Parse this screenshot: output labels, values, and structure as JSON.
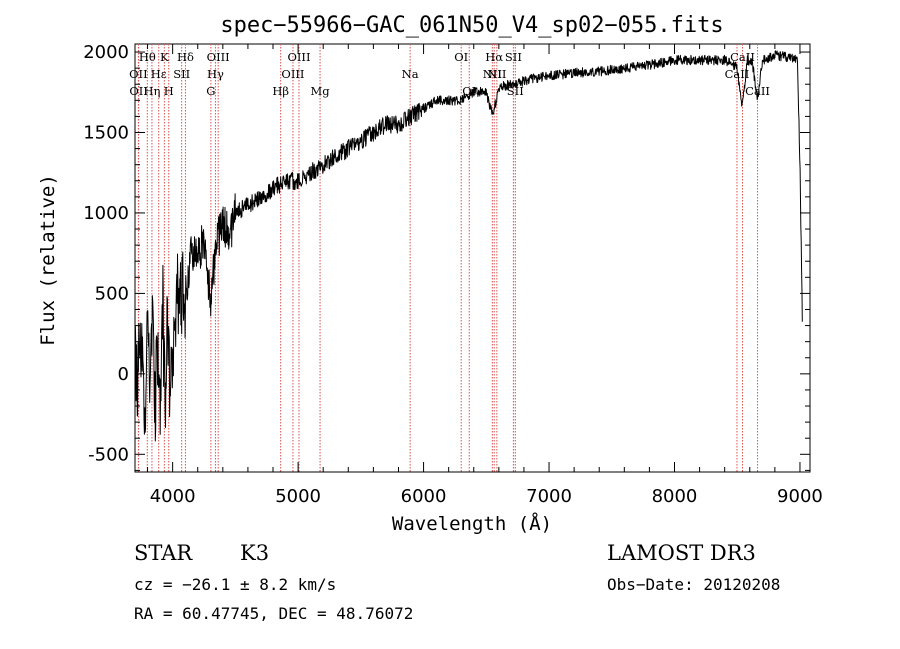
{
  "chart_data": {
    "type": "line",
    "title": "spec−55966−GAC_061N50_V4_sp02−055.fits",
    "xlabel": "Wavelength (Å)",
    "ylabel": "Flux (relative)",
    "xlim": [
      3700,
      9080
    ],
    "ylim": [
      -610,
      2050
    ],
    "xticks": [
      4000,
      5000,
      6000,
      7000,
      8000,
      9000
    ],
    "yticks": [
      -500,
      0,
      500,
      1000,
      1500,
      2000
    ],
    "grid": false,
    "series": [
      {
        "name": "flux",
        "x": [
          3700,
          3720,
          3740,
          3760,
          3780,
          3800,
          3820,
          3840,
          3860,
          3880,
          3900,
          3920,
          3940,
          3960,
          3980,
          4000,
          4050,
          4100,
          4150,
          4200,
          4250,
          4300,
          4350,
          4400,
          4450,
          4500,
          4600,
          4700,
          4800,
          4900,
          5000,
          5100,
          5200,
          5300,
          5400,
          5500,
          5600,
          5700,
          5800,
          5900,
          6000,
          6100,
          6200,
          6300,
          6400,
          6500,
          6550,
          6600,
          6700,
          6800,
          6900,
          7000,
          7200,
          7400,
          7600,
          7800,
          8000,
          8200,
          8400,
          8500,
          8540,
          8580,
          8620,
          8660,
          8700,
          8800,
          8900,
          8980,
          9000,
          9020
        ],
        "values": [
          50,
          -150,
          350,
          100,
          -300,
          300,
          -100,
          500,
          -200,
          200,
          -350,
          500,
          -250,
          400,
          -100,
          200,
          550,
          500,
          750,
          700,
          850,
          450,
          800,
          950,
          850,
          1000,
          1050,
          1100,
          1150,
          1200,
          1200,
          1250,
          1300,
          1350,
          1400,
          1450,
          1500,
          1550,
          1550,
          1600,
          1650,
          1700,
          1700,
          1700,
          1750,
          1750,
          1600,
          1780,
          1800,
          1820,
          1840,
          1850,
          1870,
          1880,
          1900,
          1920,
          1950,
          1950,
          1950,
          1900,
          1650,
          1950,
          1940,
          1700,
          1950,
          1980,
          1970,
          1950,
          1300,
          300
        ]
      }
    ],
    "spectral_lines": [
      {
        "label": "Hθ",
        "x": 3798,
        "row": 1
      },
      {
        "label": "OII",
        "x": 3727,
        "row": 2
      },
      {
        "label": "OII",
        "x": 3729,
        "row": 3
      },
      {
        "label": "Hη",
        "x": 3835,
        "row": 3
      },
      {
        "label": "K",
        "x": 3934,
        "row": 1
      },
      {
        "label": "Hε",
        "x": 3889,
        "row": 2
      },
      {
        "label": "H",
        "x": 3969,
        "row": 3
      },
      {
        "label": "Hδ",
        "x": 4102,
        "row": 1
      },
      {
        "label": "SII",
        "x": 4072,
        "row": 2
      },
      {
        "label": "OIII",
        "x": 4363,
        "row": 1
      },
      {
        "label": "Hγ",
        "x": 4341,
        "row": 2
      },
      {
        "label": "G",
        "x": 4305,
        "row": 3
      },
      {
        "label": "OIII",
        "x": 5007,
        "row": 1
      },
      {
        "label": "OIII",
        "x": 4959,
        "row": 2
      },
      {
        "label": "Hβ",
        "x": 4861,
        "row": 3
      },
      {
        "label": "Mg",
        "x": 5175,
        "row": 3
      },
      {
        "label": "Na",
        "x": 5893,
        "row": 2
      },
      {
        "label": "OI",
        "x": 6300,
        "row": 1
      },
      {
        "label": "OI",
        "x": 6364,
        "row": 3
      },
      {
        "label": "Hα",
        "x": 6563,
        "row": 1
      },
      {
        "label": "SII",
        "x": 6716,
        "row": 1
      },
      {
        "label": "NII",
        "x": 6548,
        "row": 2
      },
      {
        "label": "NII",
        "x": 6584,
        "row": 2
      },
      {
        "label": "SII",
        "x": 6731,
        "row": 3
      },
      {
        "label": "CaII",
        "x": 8542,
        "row": 1
      },
      {
        "label": "CaII",
        "x": 8498,
        "row": 2
      },
      {
        "label": "CaII",
        "x": 8662,
        "row": 3
      }
    ],
    "annotations": {
      "class": "STAR",
      "subclass": "K3",
      "survey": "LAMOST DR3",
      "redshift": "cz = −26.1 ± 8.2 km/s",
      "obs_date": "Obs−Date: 20120208",
      "coords": "RA =  60.47745, DEC =  48.76072"
    }
  },
  "colors": {
    "spectrum": "#000000",
    "line_markers": "#d9534f"
  }
}
